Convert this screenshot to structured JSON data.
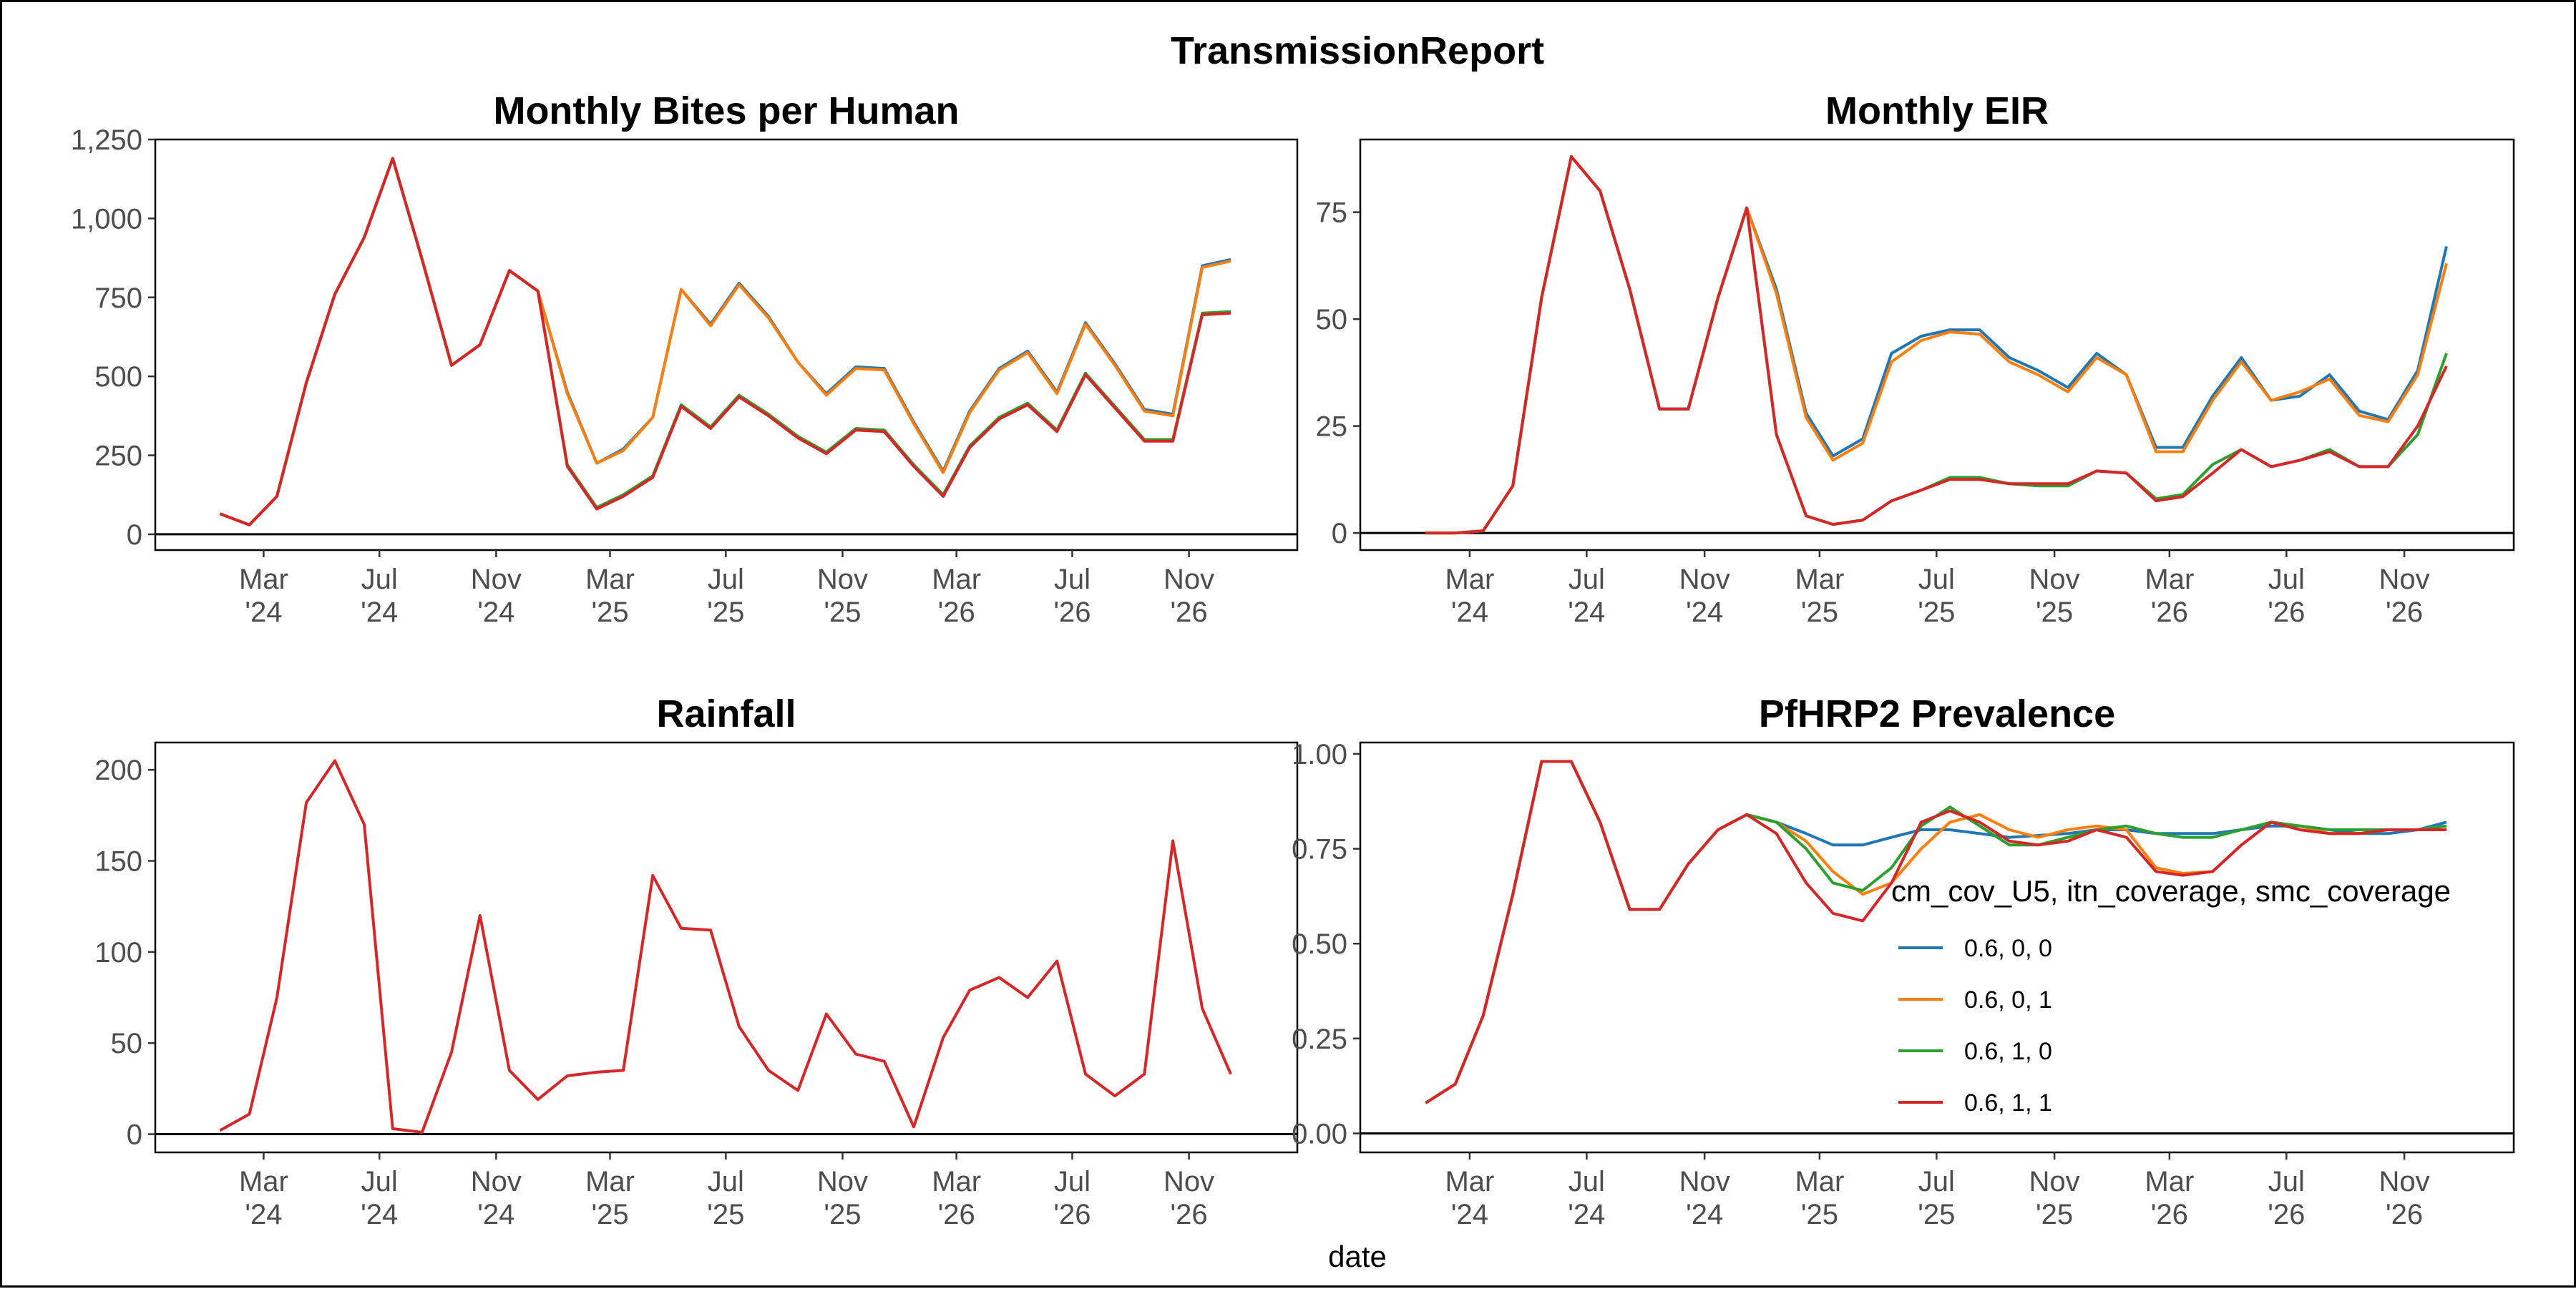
{
  "figure": {
    "title": "TransmissionReport",
    "xlabel": "date"
  },
  "colors": {
    "0.6, 0, 0": "#1f77b4",
    "0.6, 0, 1": "#ff7f0e",
    "0.6, 1, 0": "#2ca02c",
    "0.6, 1, 1": "#d62728"
  },
  "legend": {
    "title": "cm_cov_U5, itn_coverage, smc_coverage",
    "items": [
      "0.6, 0, 0",
      "0.6, 0, 1",
      "0.6, 1, 0",
      "0.6, 1, 1"
    ]
  },
  "x_axis": {
    "range": [
      "2024-01-01",
      "2026-12-31"
    ],
    "ticks": [
      {
        "date": "2024-03-01",
        "l1": "Mar",
        "l2": "'24"
      },
      {
        "date": "2024-07-01",
        "l1": "Jul",
        "l2": "'24"
      },
      {
        "date": "2024-11-01",
        "l1": "Nov",
        "l2": "'24"
      },
      {
        "date": "2025-03-01",
        "l1": "Mar",
        "l2": "'25"
      },
      {
        "date": "2025-07-01",
        "l1": "Jul",
        "l2": "'25"
      },
      {
        "date": "2025-11-01",
        "l1": "Nov",
        "l2": "'25"
      },
      {
        "date": "2026-03-01",
        "l1": "Mar",
        "l2": "'26"
      },
      {
        "date": "2026-07-01",
        "l1": "Jul",
        "l2": "'26"
      },
      {
        "date": "2026-11-01",
        "l1": "Nov",
        "l2": "'26"
      }
    ]
  },
  "chart_data": [
    {
      "type": "line",
      "title": "Monthly Bites per Human",
      "ylim": [
        -50,
        1250
      ],
      "yticks": [
        0,
        250,
        500,
        750,
        1000,
        1250
      ],
      "ytick_labels": [
        "0",
        "250",
        "500",
        "750",
        "1,000",
        "1,250"
      ],
      "x": [
        "2024-01-15",
        "2024-02-15",
        "2024-03-15",
        "2024-04-15",
        "2024-05-15",
        "2024-06-15",
        "2024-07-15",
        "2024-08-15",
        "2024-09-15",
        "2024-10-15",
        "2024-11-15",
        "2024-12-15",
        "2025-01-15",
        "2025-02-15",
        "2025-03-15",
        "2025-04-15",
        "2025-05-15",
        "2025-06-15",
        "2025-07-15",
        "2025-08-15",
        "2025-09-15",
        "2025-10-15",
        "2025-11-15",
        "2025-12-15",
        "2026-01-15",
        "2026-02-15",
        "2026-03-15",
        "2026-04-15",
        "2026-05-15",
        "2026-06-15",
        "2026-07-15",
        "2026-08-15",
        "2026-09-15",
        "2026-10-15",
        "2026-11-15",
        "2026-12-15"
      ],
      "series": [
        {
          "name": "0.6, 0, 0",
          "values": [
            65,
            30,
            120,
            480,
            760,
            940,
            1190,
            870,
            535,
            600,
            835,
            770,
            450,
            225,
            270,
            370,
            775,
            665,
            795,
            690,
            545,
            445,
            530,
            525,
            355,
            200,
            390,
            525,
            580,
            450,
            670,
            540,
            395,
            380,
            850,
            870
          ]
        },
        {
          "name": "0.6, 0, 1",
          "values": [
            65,
            30,
            120,
            480,
            760,
            940,
            1190,
            870,
            535,
            600,
            835,
            770,
            445,
            225,
            265,
            370,
            775,
            660,
            790,
            685,
            545,
            440,
            525,
            520,
            350,
            195,
            385,
            520,
            575,
            445,
            665,
            535,
            390,
            375,
            845,
            865
          ]
        },
        {
          "name": "0.6, 1, 0",
          "values": [
            65,
            30,
            120,
            480,
            760,
            940,
            1190,
            870,
            535,
            600,
            835,
            770,
            220,
            85,
            125,
            185,
            410,
            340,
            440,
            380,
            310,
            260,
            335,
            330,
            220,
            125,
            280,
            370,
            415,
            330,
            510,
            405,
            300,
            300,
            700,
            705
          ]
        },
        {
          "name": "0.6, 1, 1",
          "values": [
            65,
            30,
            120,
            480,
            760,
            940,
            1190,
            870,
            535,
            600,
            835,
            770,
            215,
            80,
            120,
            180,
            405,
            335,
            435,
            375,
            305,
            255,
            330,
            325,
            215,
            120,
            275,
            365,
            410,
            325,
            505,
            400,
            295,
            295,
            695,
            700
          ]
        }
      ]
    },
    {
      "type": "line",
      "title": "Monthly EIR",
      "ylim": [
        -4,
        92
      ],
      "yticks": [
        0,
        25,
        50,
        75
      ],
      "ytick_labels": [
        "0",
        "25",
        "50",
        "75"
      ],
      "x": [
        "2024-01-15",
        "2024-02-15",
        "2024-03-15",
        "2024-04-15",
        "2024-05-15",
        "2024-06-15",
        "2024-07-15",
        "2024-08-15",
        "2024-09-15",
        "2024-10-15",
        "2024-11-15",
        "2024-12-15",
        "2025-01-15",
        "2025-02-15",
        "2025-03-15",
        "2025-04-15",
        "2025-05-15",
        "2025-06-15",
        "2025-07-15",
        "2025-08-15",
        "2025-09-15",
        "2025-10-15",
        "2025-11-15",
        "2025-12-15",
        "2026-01-15",
        "2026-02-15",
        "2026-03-15",
        "2026-04-15",
        "2026-05-15",
        "2026-06-15",
        "2026-07-15",
        "2026-08-15",
        "2026-09-15",
        "2026-10-15",
        "2026-11-15",
        "2026-12-15"
      ],
      "series": [
        {
          "name": "0.6, 0, 0",
          "values": [
            0,
            0,
            0.5,
            11,
            55,
            88,
            80,
            57,
            29,
            29,
            55,
            76,
            57,
            28,
            18,
            22,
            42,
            46,
            47.5,
            47.5,
            41,
            38,
            34,
            42,
            37,
            20,
            20,
            32,
            41,
            31,
            32,
            37,
            28.5,
            26.5,
            38,
            67
          ]
        },
        {
          "name": "0.6, 0, 1",
          "values": [
            0,
            0,
            0.5,
            11,
            55,
            88,
            80,
            57,
            29,
            29,
            55,
            76,
            56,
            27,
            17,
            21,
            40,
            45,
            47,
            46.5,
            40,
            37,
            33,
            41,
            37,
            19,
            19,
            31,
            40,
            31,
            33,
            36,
            27.5,
            26,
            37,
            63
          ]
        },
        {
          "name": "0.6, 1, 0",
          "values": [
            0,
            0,
            0.5,
            11,
            55,
            88,
            80,
            57,
            29,
            29,
            55,
            76,
            23,
            4,
            2,
            3,
            7.5,
            10,
            13,
            13,
            11.5,
            11,
            11,
            14.5,
            14,
            8,
            9,
            16,
            19.5,
            15.5,
            17,
            19.5,
            15.5,
            15.5,
            23,
            42
          ]
        },
        {
          "name": "0.6, 1, 1",
          "values": [
            0,
            0,
            0.5,
            11,
            55,
            88,
            80,
            57,
            29,
            29,
            55,
            76,
            23,
            4,
            2,
            3,
            7.5,
            10,
            12.5,
            12.5,
            11.5,
            11.5,
            11.5,
            14.5,
            14,
            7.5,
            8.5,
            14,
            19.5,
            15.5,
            17,
            19,
            15.5,
            15.5,
            25,
            39
          ]
        }
      ]
    },
    {
      "type": "line",
      "title": "Rainfall",
      "ylim": [
        -10,
        215
      ],
      "yticks": [
        0,
        50,
        100,
        150,
        200
      ],
      "ytick_labels": [
        "0",
        "50",
        "100",
        "150",
        "200"
      ],
      "x": [
        "2024-01-15",
        "2024-02-15",
        "2024-03-15",
        "2024-04-15",
        "2024-05-15",
        "2024-06-15",
        "2024-07-15",
        "2024-08-15",
        "2024-09-15",
        "2024-10-15",
        "2024-11-15",
        "2024-12-15",
        "2025-01-15",
        "2025-02-15",
        "2025-03-15",
        "2025-04-15",
        "2025-05-15",
        "2025-06-15",
        "2025-07-15",
        "2025-08-15",
        "2025-09-15",
        "2025-10-15",
        "2025-11-15",
        "2025-12-15",
        "2026-01-15",
        "2026-02-15",
        "2026-03-15",
        "2026-04-15",
        "2026-05-15",
        "2026-06-15",
        "2026-07-15",
        "2026-08-15",
        "2026-09-15",
        "2026-10-15",
        "2026-11-15",
        "2026-12-15"
      ],
      "series": [
        {
          "name": "0.6, 1, 1",
          "values": [
            2,
            11,
            75,
            182,
            205,
            170,
            3,
            1,
            45,
            120,
            35,
            19,
            32,
            34,
            35,
            142,
            113,
            112,
            59,
            35,
            24,
            66,
            44,
            40,
            4,
            53,
            79,
            86,
            75,
            95,
            33,
            21,
            33,
            161,
            69,
            33
          ]
        }
      ]
    },
    {
      "type": "line",
      "title": "PfHRP2 Prevalence",
      "ylim": [
        -0.05,
        1.03
      ],
      "yticks": [
        0,
        0.25,
        0.5,
        0.75,
        1
      ],
      "ytick_labels": [
        "0.00",
        "0.25",
        "0.50",
        "0.75",
        "1.00"
      ],
      "x": [
        "2024-01-15",
        "2024-02-15",
        "2024-03-15",
        "2024-04-15",
        "2024-05-15",
        "2024-06-15",
        "2024-07-15",
        "2024-08-15",
        "2024-09-15",
        "2024-10-15",
        "2024-11-15",
        "2024-12-15",
        "2025-01-15",
        "2025-02-15",
        "2025-03-15",
        "2025-04-15",
        "2025-05-15",
        "2025-06-15",
        "2025-07-15",
        "2025-08-15",
        "2025-09-15",
        "2025-10-15",
        "2025-11-15",
        "2025-12-15",
        "2026-01-15",
        "2026-02-15",
        "2026-03-15",
        "2026-04-15",
        "2026-05-15",
        "2026-06-15",
        "2026-07-15",
        "2026-08-15",
        "2026-09-15",
        "2026-10-15",
        "2026-11-15",
        "2026-12-15"
      ],
      "series": [
        {
          "name": "0.6, 0, 0",
          "values": [
            0.08,
            0.13,
            0.31,
            0.63,
            0.98,
            0.98,
            0.82,
            0.59,
            0.59,
            0.71,
            0.8,
            0.84,
            0.82,
            0.79,
            0.76,
            0.76,
            0.78,
            0.8,
            0.8,
            0.79,
            0.78,
            0.785,
            0.79,
            0.8,
            0.8,
            0.79,
            0.79,
            0.79,
            0.8,
            0.81,
            0.81,
            0.8,
            0.79,
            0.79,
            0.8,
            0.82
          ]
        },
        {
          "name": "0.6, 0, 1",
          "values": [
            0.08,
            0.13,
            0.31,
            0.63,
            0.98,
            0.98,
            0.82,
            0.59,
            0.59,
            0.71,
            0.8,
            0.84,
            0.82,
            0.77,
            0.69,
            0.63,
            0.66,
            0.75,
            0.82,
            0.84,
            0.8,
            0.78,
            0.8,
            0.81,
            0.8,
            0.7,
            0.685,
            0.69,
            0.76,
            0.82,
            0.81,
            0.79,
            0.79,
            0.8,
            0.8,
            0.81
          ]
        },
        {
          "name": "0.6, 1, 0",
          "values": [
            0.08,
            0.13,
            0.31,
            0.63,
            0.98,
            0.98,
            0.82,
            0.59,
            0.59,
            0.71,
            0.8,
            0.84,
            0.82,
            0.75,
            0.66,
            0.64,
            0.7,
            0.81,
            0.86,
            0.81,
            0.76,
            0.76,
            0.78,
            0.8,
            0.81,
            0.79,
            0.78,
            0.78,
            0.8,
            0.82,
            0.81,
            0.8,
            0.8,
            0.8,
            0.8,
            0.81
          ]
        },
        {
          "name": "0.6, 1, 1",
          "values": [
            0.08,
            0.13,
            0.31,
            0.63,
            0.98,
            0.98,
            0.82,
            0.59,
            0.59,
            0.71,
            0.8,
            0.84,
            0.79,
            0.66,
            0.58,
            0.56,
            0.66,
            0.82,
            0.85,
            0.82,
            0.77,
            0.76,
            0.77,
            0.8,
            0.78,
            0.69,
            0.68,
            0.69,
            0.76,
            0.82,
            0.8,
            0.79,
            0.79,
            0.8,
            0.8,
            0.8
          ]
        }
      ]
    }
  ]
}
